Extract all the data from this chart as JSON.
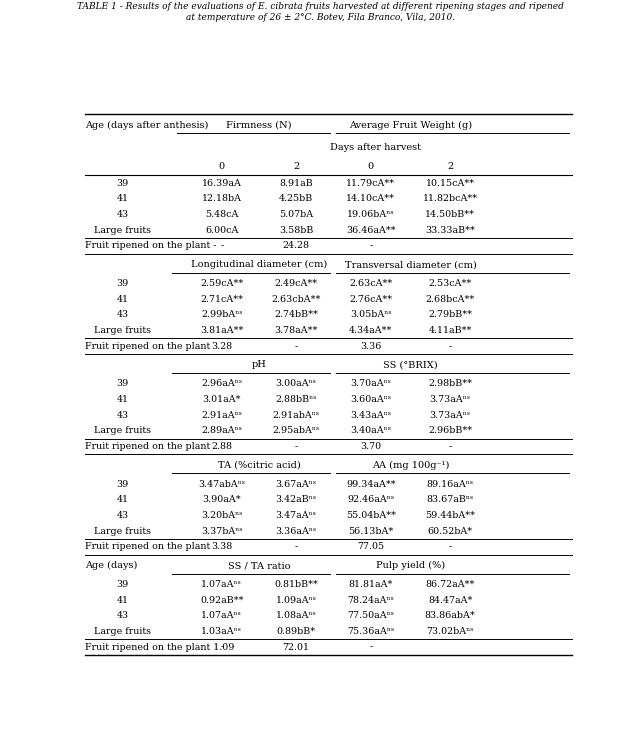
{
  "title_line1": "TABLE 1 - Results of the evaluations of E. cibrata fruits harvested at different ripening stages and ripened",
  "title_line2": "at temperature of 26 ± 2°C. Botev, Fila Branco, Vila, 2010.",
  "font_size": 6.8,
  "header_font_size": 7.0,
  "rows": [
    {
      "type": "header1",
      "col0": "Age (days after anthesis)",
      "span1": "Firmness (N)",
      "span2": "Average Fruit Weight (g)"
    },
    {
      "type": "header2",
      "span_all": "Days after harvest"
    },
    {
      "type": "header3",
      "vals": [
        "0",
        "2",
        "0",
        "2"
      ]
    },
    {
      "type": "data",
      "vals": [
        "39",
        "16.39aA",
        "8.91aB",
        "11.79cA**",
        "10.15cA**"
      ]
    },
    {
      "type": "data",
      "vals": [
        "41",
        "12.18bA",
        "4.25bB",
        "14.10cA**",
        "11.82bcA**"
      ]
    },
    {
      "type": "data",
      "vals": [
        "43",
        "5.48cA",
        "5.07bA",
        "19.06bAⁿˢ",
        "14.50bB**"
      ]
    },
    {
      "type": "data",
      "vals": [
        "Large fruits",
        "6.00cA",
        "3.58bB",
        "36.46aA**",
        "33.33aB**"
      ]
    },
    {
      "type": "plant",
      "vals": [
        "Fruit ripened on the plant -",
        "-",
        "24.28",
        "-"
      ]
    },
    {
      "type": "header_sub",
      "span1": "Longitudinal diameter (cm)",
      "span2": "Transversal diameter (cm)"
    },
    {
      "type": "data",
      "vals": [
        "39",
        "2.59cA**",
        "2.49cA**",
        "2.63cA**",
        "2.53cA**"
      ]
    },
    {
      "type": "data",
      "vals": [
        "41",
        "2.71cA**",
        "2.63cbA**",
        "2.76cA**",
        "2.68bcA**"
      ]
    },
    {
      "type": "data",
      "vals": [
        "43",
        "2.99bAⁿˢ",
        "2.74bB**",
        "3.05bAⁿˢ",
        "2.79bB**"
      ]
    },
    {
      "type": "data",
      "vals": [
        "Large fruits",
        "3.81aA**",
        "3.78aA**",
        "4.34aA**",
        "4.11aB**"
      ]
    },
    {
      "type": "plant",
      "vals": [
        "Fruit ripened on the plant",
        "3.28",
        "-",
        "3.36",
        "-"
      ]
    },
    {
      "type": "header_sub",
      "span1": "pH",
      "span2": "SS (°BRIX)"
    },
    {
      "type": "data",
      "vals": [
        "39",
        "2.96aAⁿˢ",
        "3.00aAⁿˢ",
        "3.70aAⁿˢ",
        "2.98bB**"
      ]
    },
    {
      "type": "data",
      "vals": [
        "41",
        "3.01aA*",
        "2.88bBⁿˢ",
        "3.60aAⁿˢ",
        "3.73aAⁿˢ"
      ]
    },
    {
      "type": "data",
      "vals": [
        "43",
        "2.91aAⁿˢ",
        "2.91abAⁿˢ",
        "3.43aAⁿˢ",
        "3.73aAⁿˢ"
      ]
    },
    {
      "type": "data",
      "vals": [
        "Large fruits",
        "2.89aAⁿˢ",
        "2.95abAⁿˢ",
        "3.40aAⁿˢ",
        "2.96bB**"
      ]
    },
    {
      "type": "plant",
      "vals": [
        "Fruit ripened on the plant",
        "2.88",
        "-",
        "3.70",
        "-"
      ]
    },
    {
      "type": "header_sub",
      "span1": "TA (%citric acid)",
      "span2": "AA (mg 100g⁻¹)"
    },
    {
      "type": "data",
      "vals": [
        "39",
        "3.47abAⁿˢ",
        "3.67aAⁿˢ",
        "99.34aA**",
        "89.16aAⁿˢ"
      ]
    },
    {
      "type": "data",
      "vals": [
        "41",
        "3.90aA*",
        "3.42aBⁿˢ",
        "92.46aAⁿˢ",
        "83.67aBⁿˢ"
      ]
    },
    {
      "type": "data",
      "vals": [
        "43",
        "3.20bAⁿˢ",
        "3.47aAⁿˢ",
        "55.04bA**",
        "59.44bA**"
      ]
    },
    {
      "type": "data",
      "vals": [
        "Large fruits",
        "3.37bAⁿˢ",
        "3.36aAⁿˢ",
        "56.13bA*",
        "60.52bA*"
      ]
    },
    {
      "type": "plant",
      "vals": [
        "Fruit ripened on the plant",
        "3.38",
        "-",
        "77.05",
        "-"
      ]
    },
    {
      "type": "age_header",
      "col0": "Age (days)",
      "span1": "SS / TA ratio",
      "span2": "Pulp yield (%)"
    },
    {
      "type": "data",
      "vals": [
        "39",
        "1.07aAⁿˢ",
        "0.81bB**",
        "81.81aA*",
        "86.72aA**"
      ]
    },
    {
      "type": "data",
      "vals": [
        "41",
        "0.92aB**",
        "1.09aAⁿˢ",
        "78.24aAⁿˢ",
        "84.47aA*"
      ]
    },
    {
      "type": "data",
      "vals": [
        "43",
        "1.07aAⁿˢ",
        "1.08aAⁿˢ",
        "77.50aAⁿˢ",
        "83.86abA*"
      ]
    },
    {
      "type": "data",
      "vals": [
        "Large fruits",
        "1.03aAⁿˢ",
        "0.89bB*",
        "75.36aAⁿˢ",
        "73.02bAⁿˢ"
      ]
    },
    {
      "type": "plant_last",
      "vals": [
        "Fruit ripened on the plant 1.09",
        "-",
        "72.01",
        "-"
      ]
    }
  ]
}
